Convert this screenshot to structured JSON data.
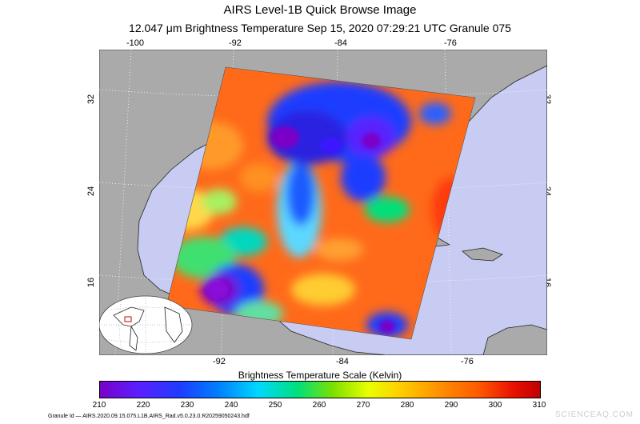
{
  "header": {
    "title": "AIRS Level-1B Quick Browse Image",
    "subtitle": "12.047 μm Brightness Temperature    Sep 15, 2020 07:29:21 UTC   Granule 075"
  },
  "map": {
    "top_lon_labels": [
      "-100",
      "-92",
      "-84",
      "-76"
    ],
    "bottom_lon_labels": [
      "-92",
      "-84",
      "-76"
    ],
    "left_lat_labels": [
      "32",
      "24",
      "16"
    ],
    "right_lat_labels": [
      "32",
      "24",
      "16"
    ],
    "ocean_color": "#c8ccf2",
    "land_color": "#aaaaaa"
  },
  "colorbar": {
    "title": "Brightness Temperature Scale (Kelvin)",
    "ticks": [
      "210",
      "220",
      "230",
      "240",
      "250",
      "260",
      "270",
      "280",
      "290",
      "300",
      "310"
    ]
  },
  "footer": {
    "granule_id": "Granule Id — AIRS.2020.09.15.075.L1B.AIRS_Rad.v5.0.23.0.R20259050243.hdf",
    "watermark": "SCIENCEAQ.COM"
  }
}
